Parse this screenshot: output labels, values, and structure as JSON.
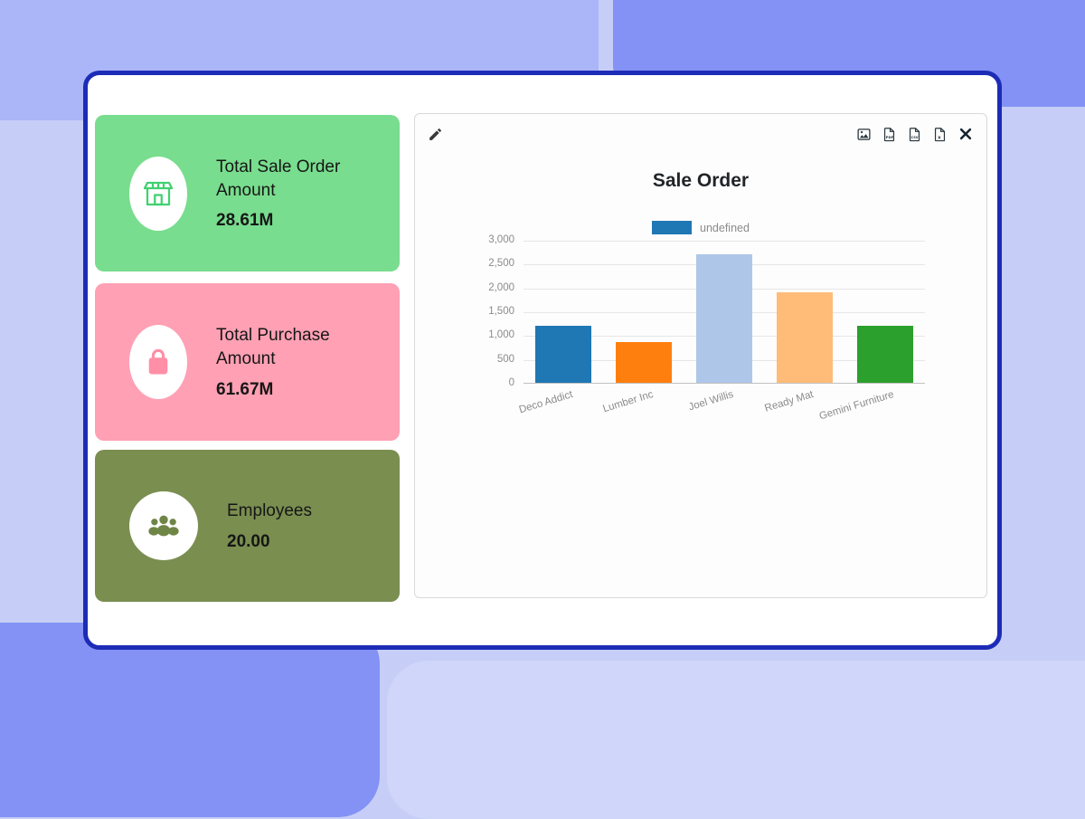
{
  "background_colors": {
    "base": "#c6cef7",
    "block_light": "#aab6f8",
    "block_dark": "#8392f4",
    "block_pale": "#cfd6fa",
    "window_border": "#1d2cb6"
  },
  "kpi_cards": [
    {
      "label": "Total Sale Order Amount",
      "value": "28.61M",
      "icon": "store-icon",
      "bg_color": "#78dd8e",
      "icon_color": "#40d170"
    },
    {
      "label": "Total Purchase Amount",
      "value": "61.67M",
      "icon": "shopping-bag-icon",
      "bg_color": "#ffa0b4",
      "icon_color": "#ff8fa6"
    },
    {
      "label": "Employees",
      "value": "20.00",
      "icon": "people-icon",
      "bg_color": "#7a8e50",
      "icon_color": "#6f8546"
    }
  ],
  "chart_widget": {
    "title": "Sale Order",
    "legend_label": "undefined",
    "toolbar_icons": [
      "pencil-icon",
      "export-image-icon",
      "export-pdf-icon",
      "export-csv-icon",
      "export-xlsx-icon",
      "close-icon"
    ]
  },
  "chart_data": {
    "type": "bar",
    "title": "Sale Order",
    "legend": "undefined",
    "legend_color": "#1f77b4",
    "legend_position": "top",
    "categories": [
      "Deco Addict",
      "Lumber Inc",
      "Joel Willis",
      "Ready Mat",
      "Gemini Furniture"
    ],
    "values": [
      1200,
      850,
      2700,
      1900,
      1200
    ],
    "bar_colors": [
      "#1f77b4",
      "#ff7f0e",
      "#aec7e8",
      "#ffbb78",
      "#2ca02c"
    ],
    "xlabel": "",
    "ylabel": "",
    "ylim": [
      0,
      3000
    ],
    "yticks": [
      0,
      500,
      1000,
      1500,
      2000,
      2500,
      3000
    ],
    "ytick_labels": [
      "0",
      "500",
      "1,000",
      "1,500",
      "2,000",
      "2,500",
      "3,000"
    ],
    "grid": true
  }
}
